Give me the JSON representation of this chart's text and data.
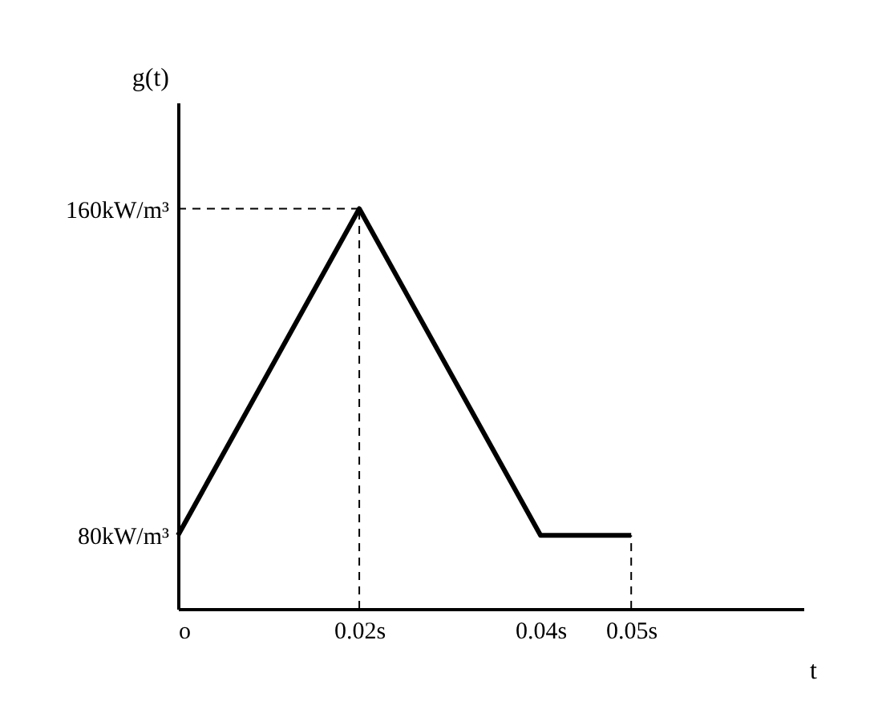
{
  "chart_data": {
    "type": "line",
    "xlabel": "t",
    "ylabel": "g(t)",
    "x": [
      0,
      0.02,
      0.04,
      0.05
    ],
    "series": [
      {
        "color": "#000000",
        "values": [
          80,
          160,
          80,
          80
        ]
      }
    ],
    "xlim": [
      0,
      0.069
    ],
    "ylim": [
      62,
      186
    ],
    "xticks": [
      {
        "value": 0,
        "label": "o"
      },
      {
        "value": 0.02,
        "label": "0.02s"
      },
      {
        "value": 0.04,
        "label": "0.04s"
      },
      {
        "value": 0.05,
        "label": "0.05s"
      }
    ],
    "yticks": [
      {
        "value": 80,
        "label": "80kW/m³"
      },
      {
        "value": 160,
        "label": "160kW/m³"
      }
    ],
    "ref_lines": [
      {
        "axis": "y",
        "value": 160,
        "line_style": "dashed"
      },
      {
        "axis": "x",
        "value": 0.02,
        "line_style": "dashed"
      },
      {
        "axis": "x",
        "value": 0.05,
        "line_style": "dashed"
      }
    ],
    "grid": false,
    "legend": false,
    "marker": "none",
    "line_style": "solid"
  }
}
